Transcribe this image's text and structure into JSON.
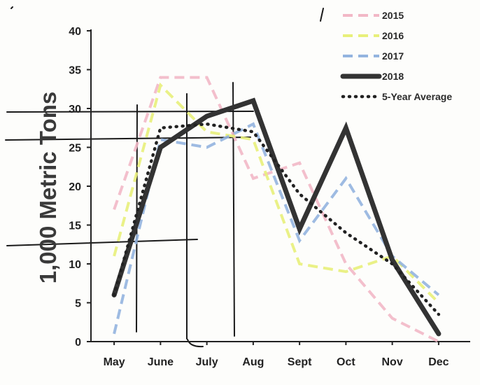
{
  "chart_data": {
    "type": "line",
    "title": "",
    "xlabel": "",
    "ylabel": "1,000 Metric Tons",
    "categories": [
      "May",
      "June",
      "July",
      "Aug",
      "Sept",
      "Oct",
      "Nov",
      "Dec"
    ],
    "ylim": [
      0,
      40
    ],
    "yticks": [
      0,
      5,
      10,
      15,
      20,
      25,
      30,
      35,
      40
    ],
    "grid": false,
    "legend_position": "top-right",
    "series": [
      {
        "name": "2015",
        "values": [
          17,
          34,
          34,
          21,
          23,
          10,
          3,
          0
        ],
        "color": "#f2b8c6",
        "style": "dashed"
      },
      {
        "name": "2016",
        "values": [
          11,
          33,
          27,
          26,
          10,
          9,
          11,
          5
        ],
        "color": "#e8f07a",
        "style": "dashed"
      },
      {
        "name": "2017",
        "values": [
          1,
          26,
          25,
          28,
          13,
          21,
          11,
          6
        ],
        "color": "#93b4df",
        "style": "dashed"
      },
      {
        "name": "2018",
        "values": [
          6,
          25,
          29,
          31,
          14.5,
          27.5,
          10.5,
          1
        ],
        "color": "#333333",
        "style": "solid"
      },
      {
        "name": "5-Year Average",
        "values": [
          6,
          27.5,
          28,
          27,
          19,
          14,
          10,
          3.5
        ],
        "color": "#222222",
        "style": "dotted"
      }
    ]
  }
}
